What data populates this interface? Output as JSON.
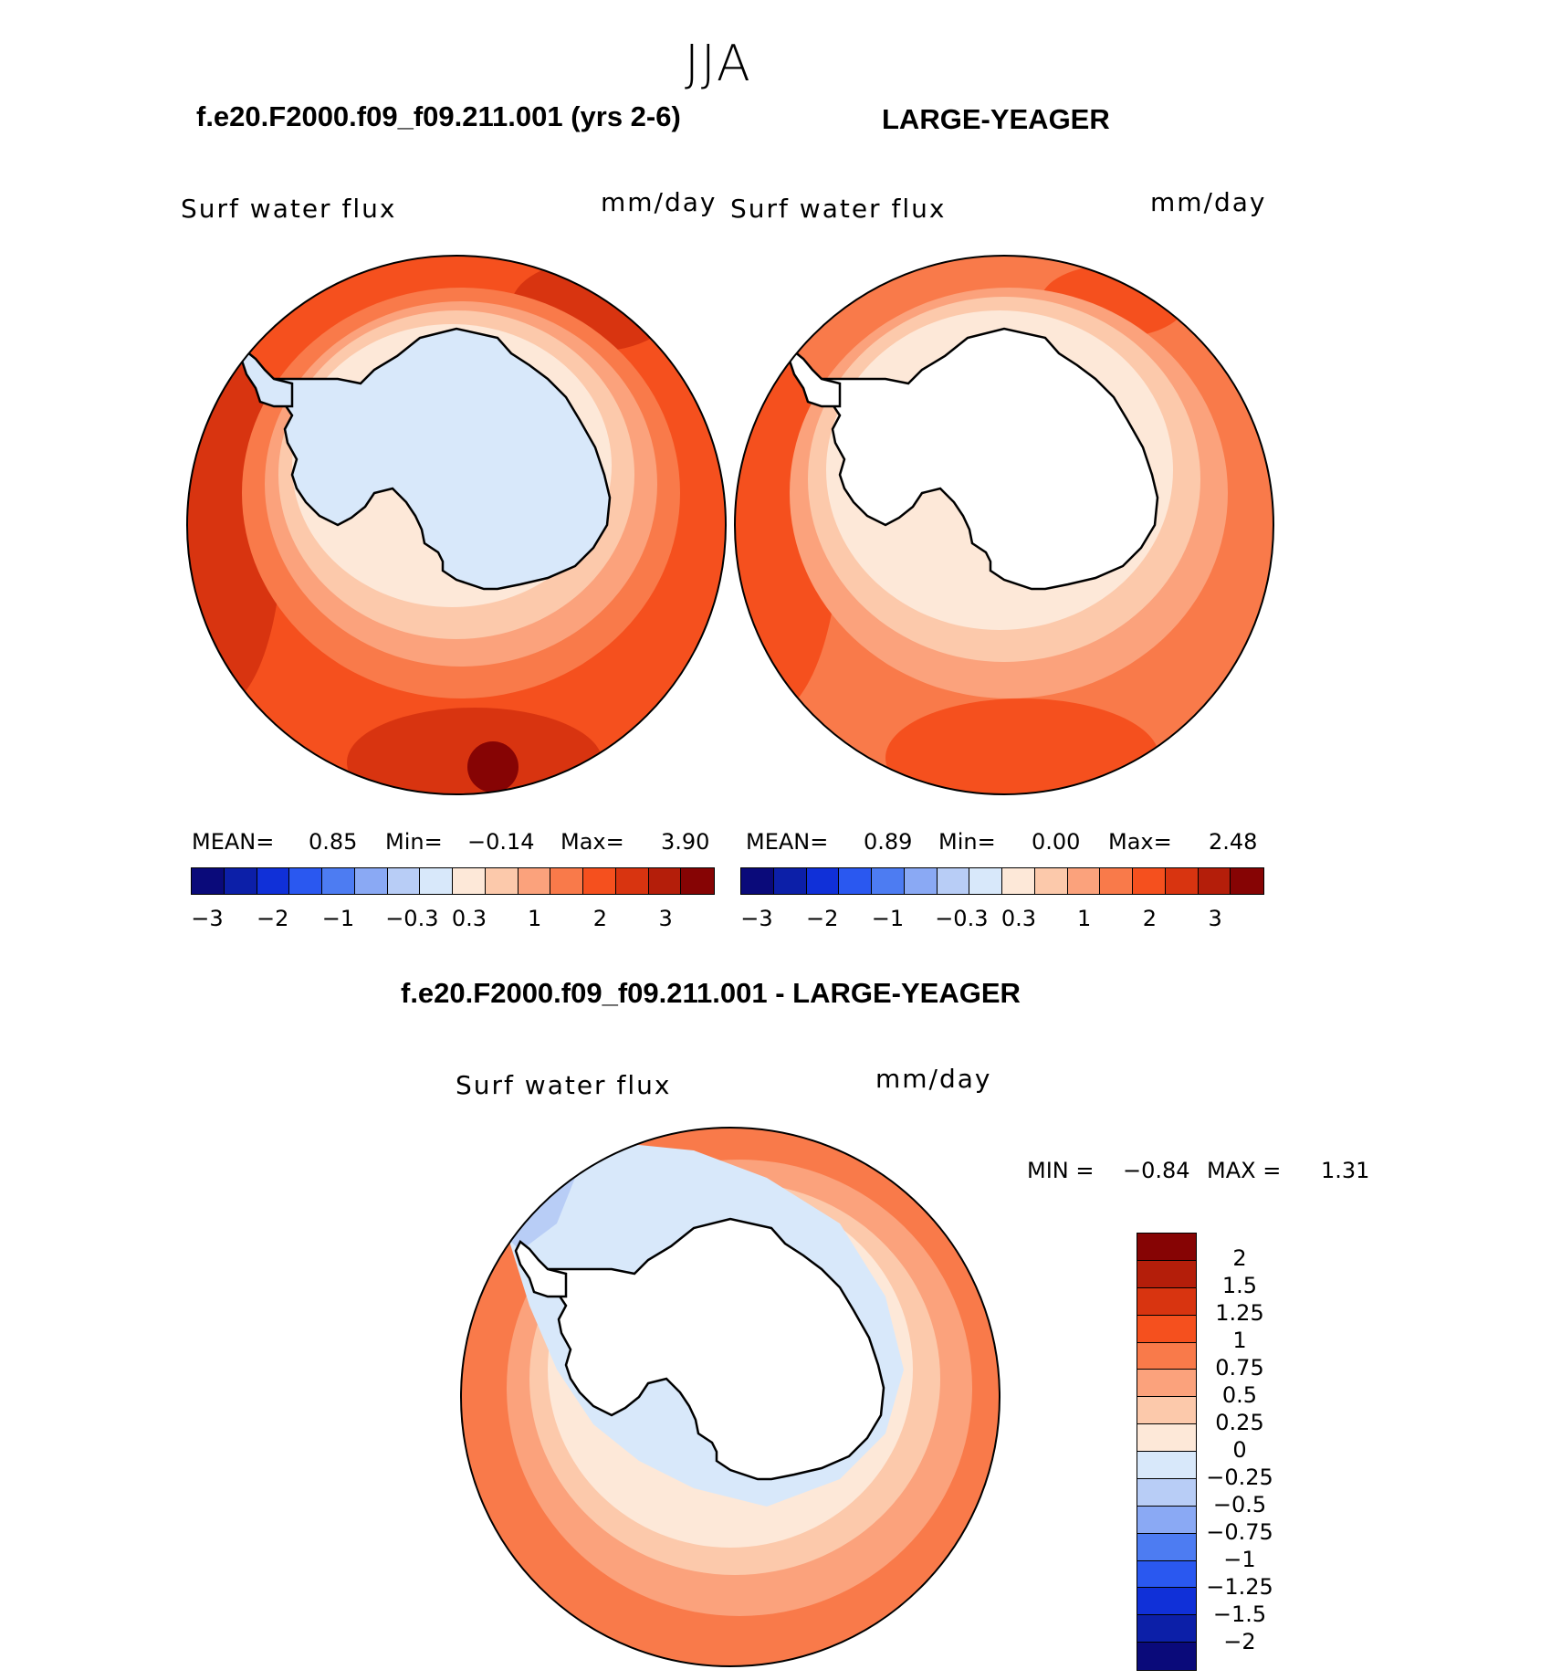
{
  "season": "JJA",
  "panels": {
    "left": {
      "title": "f.e20.F2000.f09_f09.211.001 (yrs 2-6)",
      "variable": "Surf water flux",
      "units": "mm/day",
      "stats": {
        "mean_label": "MEAN=",
        "mean": "0.85",
        "min_label": "Min=",
        "min": "−0.14",
        "max_label": "Max=",
        "max": "3.90"
      }
    },
    "right": {
      "title": "LARGE-YEAGER",
      "variable": "Surf water flux",
      "units": "mm/day",
      "stats": {
        "mean_label": "MEAN=",
        "mean": "0.89",
        "min_label": "Min=",
        "min": "0.00",
        "max_label": "Max=",
        "max": "2.48"
      }
    },
    "diff": {
      "title": "f.e20.F2000.f09_f09.211.001 - LARGE-YEAGER",
      "variable": "Surf water flux",
      "units": "mm/day",
      "min_label": "MIN =",
      "min": "−0.84",
      "max_label": "MAX =",
      "max": "1.31"
    }
  },
  "colorbar_main": {
    "colors": [
      "#0a0a7a",
      "#0c1fa8",
      "#1030d8",
      "#2a58f0",
      "#4d7cf2",
      "#8aa9f4",
      "#b8cdf6",
      "#d8e8fa",
      "#fde8d8",
      "#fcc9ab",
      "#fba27c",
      "#f97a4a",
      "#f5501e",
      "#d83410",
      "#b41e0a",
      "#860404"
    ],
    "tick_labels": [
      "−3",
      "−2",
      "−1",
      "−0.3",
      "0.3",
      "1",
      "2",
      "3"
    ]
  },
  "colorbar_diff": {
    "colors": [
      "#860404",
      "#b41e0a",
      "#d83410",
      "#f5501e",
      "#f97a4a",
      "#fba27c",
      "#fcc9ab",
      "#fde8d8",
      "#d8e8fa",
      "#b8cdf6",
      "#8aa9f4",
      "#4d7cf2",
      "#2a58f0",
      "#1030d8",
      "#0c1fa8",
      "#0a0a7a"
    ],
    "tick_labels": [
      "2",
      "1.5",
      "1.25",
      "1",
      "0.75",
      "0.5",
      "0.25",
      "0",
      "−0.25",
      "−0.5",
      "−0.75",
      "−1",
      "−1.25",
      "−1.5",
      "−2"
    ]
  },
  "map_fills": {
    "ocean_outer_strong": "#d83410",
    "ocean_outer": "#f5501e",
    "ocean_mid": "#f97a4a",
    "ocean_inner": "#fba27c",
    "ocean_near_ice": "#fcc9ab",
    "ice_edge": "#fde8d8",
    "continent_left": "#d8e8fa",
    "continent_right": "#ffffff",
    "diff_ring_outer": "#f97a4a",
    "diff_ring_mid": "#fba27c",
    "diff_ring_inner": "#fcc9ab",
    "diff_negative": "#d8e8fa",
    "diff_negative_strong": "#b8cdf6"
  }
}
